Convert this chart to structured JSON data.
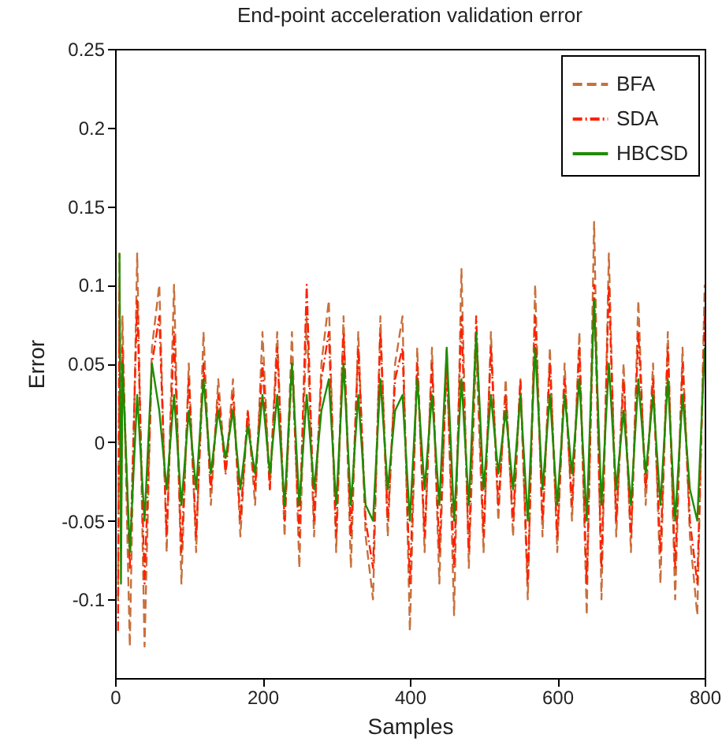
{
  "chart_data": {
    "type": "line",
    "title": "End-point acceleration validation error",
    "xlabel": "Samples",
    "ylabel": "Error",
    "x": [
      4,
      6,
      8,
      10,
      20,
      30,
      40,
      50,
      60,
      70,
      80,
      90,
      100,
      110,
      120,
      130,
      140,
      150,
      160,
      170,
      180,
      190,
      200,
      210,
      220,
      230,
      240,
      250,
      260,
      270,
      280,
      290,
      300,
      310,
      320,
      330,
      340,
      350,
      360,
      370,
      380,
      390,
      400,
      410,
      420,
      430,
      440,
      450,
      460,
      470,
      480,
      490,
      500,
      510,
      520,
      530,
      540,
      550,
      560,
      570,
      580,
      590,
      600,
      610,
      620,
      630,
      640,
      650,
      660,
      670,
      680,
      690,
      700,
      710,
      720,
      730,
      740,
      750,
      760,
      770,
      780,
      790,
      800
    ],
    "series": [
      {
        "name": "BFA",
        "color": "#c8703c",
        "line_style": "dashed",
        "values": [
          -0.1,
          0.12,
          -0.05,
          0.08,
          -0.13,
          0.12,
          -0.13,
          0.06,
          0.1,
          -0.07,
          0.1,
          -0.09,
          0.05,
          -0.07,
          0.07,
          -0.04,
          0.04,
          -0.02,
          0.04,
          -0.06,
          0.02,
          -0.04,
          0.07,
          -0.03,
          0.07,
          -0.06,
          0.07,
          -0.08,
          0.08,
          -0.06,
          0.05,
          0.09,
          -0.07,
          0.08,
          -0.08,
          0.07,
          -0.06,
          -0.1,
          0.08,
          -0.06,
          0.05,
          0.08,
          -0.12,
          0.06,
          -0.07,
          0.06,
          -0.09,
          0.06,
          -0.11,
          0.11,
          -0.08,
          0.06,
          -0.07,
          0.07,
          -0.05,
          0.04,
          -0.06,
          0.04,
          -0.1,
          0.1,
          -0.06,
          0.06,
          -0.07,
          0.05,
          -0.05,
          0.07,
          -0.11,
          0.14,
          -0.1,
          0.12,
          -0.06,
          0.05,
          -0.07,
          0.09,
          -0.04,
          0.05,
          -0.09,
          0.07,
          -0.1,
          0.06,
          -0.06,
          -0.11,
          0.1
        ]
      },
      {
        "name": "SDA",
        "color": "#ff2000",
        "line_style": "dashdot",
        "values": [
          -0.12,
          0.1,
          -0.06,
          0.06,
          -0.08,
          0.09,
          -0.09,
          0.05,
          0.08,
          -0.06,
          0.07,
          -0.07,
          0.04,
          -0.06,
          0.05,
          -0.03,
          0.03,
          -0.02,
          0.03,
          -0.05,
          0.02,
          -0.03,
          0.05,
          -0.03,
          0.06,
          -0.05,
          0.05,
          -0.06,
          0.1,
          -0.05,
          0.04,
          0.07,
          -0.06,
          0.07,
          -0.06,
          0.06,
          -0.05,
          -0.08,
          0.07,
          -0.05,
          0.04,
          0.06,
          -0.09,
          0.05,
          -0.06,
          0.05,
          -0.07,
          0.05,
          -0.08,
          0.08,
          -0.07,
          0.08,
          -0.06,
          0.06,
          -0.04,
          0.03,
          -0.05,
          0.04,
          -0.09,
          0.08,
          -0.05,
          0.05,
          -0.06,
          0.04,
          -0.04,
          0.06,
          -0.09,
          0.1,
          -0.08,
          0.1,
          -0.05,
          0.04,
          -0.06,
          0.07,
          -0.03,
          0.04,
          -0.07,
          0.06,
          -0.08,
          0.05,
          -0.05,
          -0.09,
          0.08
        ]
      },
      {
        "name": "HBCSD",
        "color": "#208c00",
        "line_style": "solid",
        "values": [
          null,
          0.12,
          -0.09,
          0.05,
          -0.07,
          0.03,
          -0.05,
          0.05,
          0.02,
          -0.03,
          0.03,
          -0.04,
          0.02,
          -0.03,
          0.04,
          -0.02,
          0.02,
          -0.01,
          0.02,
          -0.03,
          0.01,
          -0.02,
          0.03,
          -0.02,
          0.03,
          -0.04,
          0.05,
          -0.04,
          0.03,
          -0.03,
          0.02,
          0.04,
          -0.04,
          0.05,
          -0.04,
          0.03,
          -0.04,
          -0.05,
          0.04,
          -0.03,
          0.02,
          0.03,
          -0.05,
          0.04,
          -0.03,
          0.03,
          -0.04,
          0.06,
          -0.05,
          0.04,
          -0.04,
          0.07,
          -0.03,
          0.03,
          -0.02,
          0.02,
          -0.03,
          0.03,
          -0.05,
          0.06,
          -0.03,
          0.03,
          -0.04,
          0.03,
          -0.02,
          0.04,
          -0.05,
          0.09,
          -0.04,
          0.05,
          -0.03,
          0.02,
          -0.04,
          0.04,
          -0.02,
          0.03,
          -0.04,
          0.04,
          -0.05,
          0.03,
          -0.03,
          -0.05,
          0.06
        ]
      }
    ],
    "xlim": [
      0,
      800
    ],
    "xticks": [
      0,
      200,
      400,
      600,
      800
    ],
    "ylim": [
      -0.15,
      0.25
    ],
    "yticks": [
      -0.1,
      -0.05,
      0,
      0.05,
      0.1,
      0.15,
      0.2,
      0.25
    ],
    "grid": false,
    "legend": "top right",
    "marker": "none"
  }
}
